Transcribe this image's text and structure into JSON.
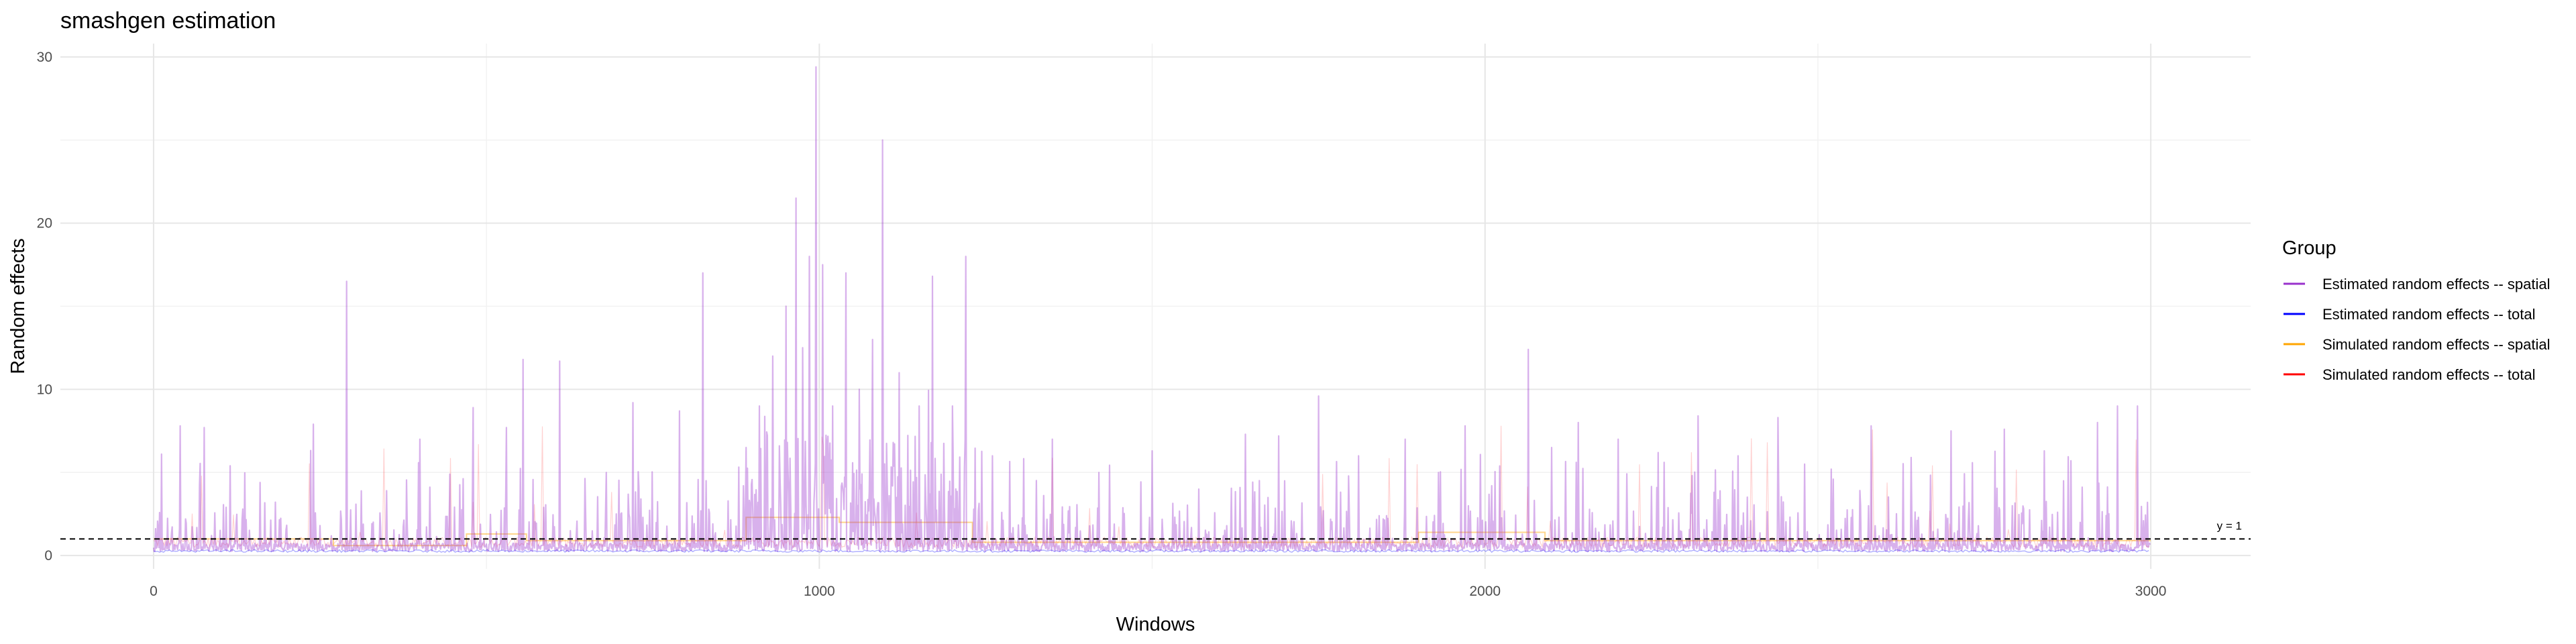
{
  "chart_data": {
    "type": "line",
    "title": "smashgen estimation",
    "xlabel": "Windows",
    "ylabel": "Random effects",
    "xlim": [
      -140,
      3150
    ],
    "ylim": [
      -0.8,
      30.8
    ],
    "x_ticks": [
      0,
      1000,
      2000,
      3000
    ],
    "y_ticks": [
      0,
      10,
      20,
      30
    ],
    "grid": true,
    "legend": {
      "title": "Group",
      "placement": "right"
    },
    "series": [
      {
        "name": "Estimated random effects -- spatial",
        "color": "#9932CC",
        "n_points": 3000,
        "baseline": 0.25,
        "peaks": [
          {
            "x": 12,
            "y": 6.1
          },
          {
            "x": 40,
            "y": 7.8
          },
          {
            "x": 76,
            "y": 7.7
          },
          {
            "x": 115,
            "y": 5.4
          },
          {
            "x": 160,
            "y": 4.4
          },
          {
            "x": 240,
            "y": 7.9
          },
          {
            "x": 290,
            "y": 16.5
          },
          {
            "x": 350,
            "y": 3.9
          },
          {
            "x": 400,
            "y": 7.0
          },
          {
            "x": 445,
            "y": 4.9
          },
          {
            "x": 480,
            "y": 8.9
          },
          {
            "x": 530,
            "y": 7.7
          },
          {
            "x": 555,
            "y": 11.8
          },
          {
            "x": 610,
            "y": 11.7
          },
          {
            "x": 680,
            "y": 5.0
          },
          {
            "x": 720,
            "y": 9.2
          },
          {
            "x": 790,
            "y": 8.7
          },
          {
            "x": 825,
            "y": 17.0
          },
          {
            "x": 890,
            "y": 6.5
          },
          {
            "x": 910,
            "y": 9.0
          },
          {
            "x": 930,
            "y": 12.0
          },
          {
            "x": 950,
            "y": 15.0
          },
          {
            "x": 965,
            "y": 21.5
          },
          {
            "x": 975,
            "y": 12.5
          },
          {
            "x": 985,
            "y": 18.0
          },
          {
            "x": 995,
            "y": 29.4
          },
          {
            "x": 1005,
            "y": 17.5
          },
          {
            "x": 1020,
            "y": 9.0
          },
          {
            "x": 1040,
            "y": 17.0
          },
          {
            "x": 1060,
            "y": 10.0
          },
          {
            "x": 1080,
            "y": 13.0
          },
          {
            "x": 1095,
            "y": 25.0
          },
          {
            "x": 1120,
            "y": 11.0
          },
          {
            "x": 1150,
            "y": 9.0
          },
          {
            "x": 1170,
            "y": 16.8
          },
          {
            "x": 1200,
            "y": 9.0
          },
          {
            "x": 1220,
            "y": 18.0
          },
          {
            "x": 1260,
            "y": 6.0
          },
          {
            "x": 1350,
            "y": 7.0
          },
          {
            "x": 1420,
            "y": 5.0
          },
          {
            "x": 1500,
            "y": 6.3
          },
          {
            "x": 1570,
            "y": 4.0
          },
          {
            "x": 1640,
            "y": 7.3
          },
          {
            "x": 1690,
            "y": 7.2
          },
          {
            "x": 1750,
            "y": 9.6
          },
          {
            "x": 1810,
            "y": 6.0
          },
          {
            "x": 1880,
            "y": 7.0
          },
          {
            "x": 1930,
            "y": 5.0
          },
          {
            "x": 1970,
            "y": 7.8
          },
          {
            "x": 2010,
            "y": 4.2
          },
          {
            "x": 2065,
            "y": 12.4
          },
          {
            "x": 2100,
            "y": 6.5
          },
          {
            "x": 2140,
            "y": 8.0
          },
          {
            "x": 2200,
            "y": 7.0
          },
          {
            "x": 2260,
            "y": 6.2
          },
          {
            "x": 2320,
            "y": 8.4
          },
          {
            "x": 2380,
            "y": 6.0
          },
          {
            "x": 2440,
            "y": 8.3
          },
          {
            "x": 2480,
            "y": 5.5
          },
          {
            "x": 2520,
            "y": 5.2
          },
          {
            "x": 2580,
            "y": 7.8
          },
          {
            "x": 2640,
            "y": 5.9
          },
          {
            "x": 2700,
            "y": 7.5
          },
          {
            "x": 2780,
            "y": 7.6
          },
          {
            "x": 2840,
            "y": 6.3
          },
          {
            "x": 2880,
            "y": 5.7
          },
          {
            "x": 2920,
            "y": 8.0
          },
          {
            "x": 2950,
            "y": 9.0
          },
          {
            "x": 2980,
            "y": 9.0
          },
          {
            "x": 2995,
            "y": 3.2
          }
        ]
      },
      {
        "name": "Estimated random effects -- total",
        "color": "#0000FF",
        "n_points": 3000,
        "baseline": 0.2
      },
      {
        "name": "Simulated random effects -- spatial",
        "color": "#FFA500",
        "n_points": 3000,
        "segments": [
          {
            "x0": 0,
            "x1": 270,
            "y": 1.0
          },
          {
            "x0": 270,
            "x1": 470,
            "y": 0.6
          },
          {
            "x0": 470,
            "x1": 560,
            "y": 1.3
          },
          {
            "x0": 560,
            "x1": 890,
            "y": 0.9
          },
          {
            "x0": 890,
            "x1": 1030,
            "y": 2.3
          },
          {
            "x0": 1030,
            "x1": 1230,
            "y": 2.0
          },
          {
            "x0": 1230,
            "x1": 1900,
            "y": 0.8
          },
          {
            "x0": 1900,
            "x1": 2090,
            "y": 1.4
          },
          {
            "x0": 2090,
            "x1": 3000,
            "y": 0.9
          }
        ]
      },
      {
        "name": "Simulated random effects -- total",
        "color": "#FF0000",
        "n_points": 3000,
        "baseline": 0.5
      }
    ],
    "reference_line": {
      "y": 1,
      "label": "y = 1",
      "style": "dashed"
    }
  }
}
